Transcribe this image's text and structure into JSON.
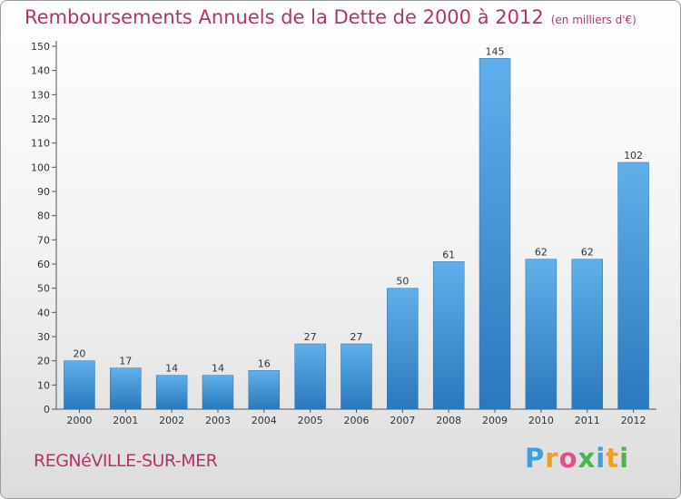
{
  "chart_data": {
    "type": "bar",
    "title": "Remboursements Annuels de la Dette de 2000 à 2012",
    "subtitle": "(en milliers d'€)",
    "xlabel": "",
    "ylabel": "",
    "categories": [
      "2000",
      "2001",
      "2002",
      "2003",
      "2004",
      "2005",
      "2006",
      "2007",
      "2008",
      "2009",
      "2010",
      "2011",
      "2012"
    ],
    "values": [
      20,
      17,
      14,
      14,
      16,
      27,
      27,
      50,
      61,
      145,
      62,
      62,
      102
    ],
    "data_labels": [
      "20",
      "17",
      "14",
      "14",
      "16",
      "27",
      "27",
      "50",
      "61",
      "145",
      "62",
      "62",
      "102"
    ],
    "ylim": [
      0,
      150
    ],
    "yticks": [
      0,
      10,
      20,
      30,
      40,
      50,
      60,
      70,
      80,
      90,
      100,
      110,
      120,
      130,
      140,
      150
    ],
    "grid": false,
    "legend": "none",
    "bar_color": "#3a8fd6",
    "title_color": "#b5326b"
  },
  "footer": {
    "commune": "REGNéVILLE-SUR-MER",
    "brand_letters": [
      "P",
      "r",
      "o",
      "x",
      "i",
      "t",
      "i"
    ],
    "brand_colors": [
      "#3aa0e0",
      "#f0a020",
      "#e84a8a",
      "#49b54a",
      "#3aa0e0",
      "#f0a020",
      "#49b54a"
    ]
  }
}
